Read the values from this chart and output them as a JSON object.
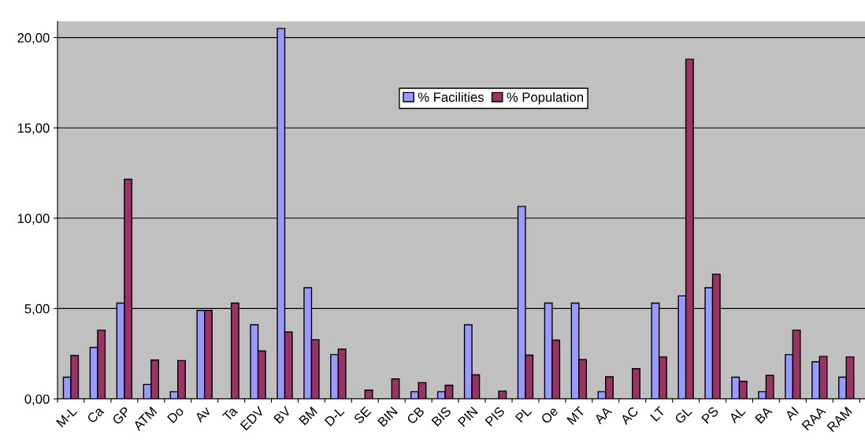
{
  "chart_data": {
    "type": "bar",
    "categories": [
      "M-L",
      "Ca",
      "GP",
      "ATM",
      "Do",
      "Av",
      "Ta",
      "EDV",
      "BV",
      "BM",
      "D-L",
      "SE",
      "BIN",
      "CB",
      "BIS",
      "PIN",
      "PIS",
      "PL",
      "Oe",
      "MT",
      "AA",
      "AC",
      "LT",
      "GL",
      "PS",
      "AL",
      "BA",
      "AI",
      "RAA",
      "RAM"
    ],
    "series": [
      {
        "name": "% Facilities",
        "color": "#9999ff",
        "values": [
          1.2,
          2.85,
          5.3,
          0.8,
          0.4,
          4.9,
          null,
          4.1,
          20.5,
          6.15,
          2.45,
          null,
          null,
          0.4,
          0.4,
          4.1,
          null,
          10.65,
          5.3,
          5.3,
          0.4,
          null,
          5.3,
          5.7,
          6.15,
          1.2,
          0.4,
          2.45,
          2.05,
          1.2
        ]
      },
      {
        "name": "% Population",
        "color": "#993366",
        "values": [
          2.4,
          3.8,
          12.15,
          2.15,
          2.12,
          4.9,
          5.3,
          2.65,
          3.7,
          3.28,
          2.75,
          0.48,
          1.1,
          0.9,
          0.75,
          1.33,
          0.43,
          2.42,
          3.25,
          2.17,
          1.22,
          1.67,
          2.32,
          18.8,
          6.9,
          0.97,
          1.3,
          3.8,
          2.35,
          2.32
        ]
      }
    ],
    "ylim": [
      0,
      20.9
    ],
    "yticks": [
      {
        "value": 0,
        "label": "0,00"
      },
      {
        "value": 5,
        "label": "5,00"
      },
      {
        "value": 10,
        "label": "10,00"
      },
      {
        "value": 15,
        "label": "15,00"
      },
      {
        "value": 20,
        "label": "20,00"
      }
    ],
    "grid": "y",
    "legend": "top"
  }
}
